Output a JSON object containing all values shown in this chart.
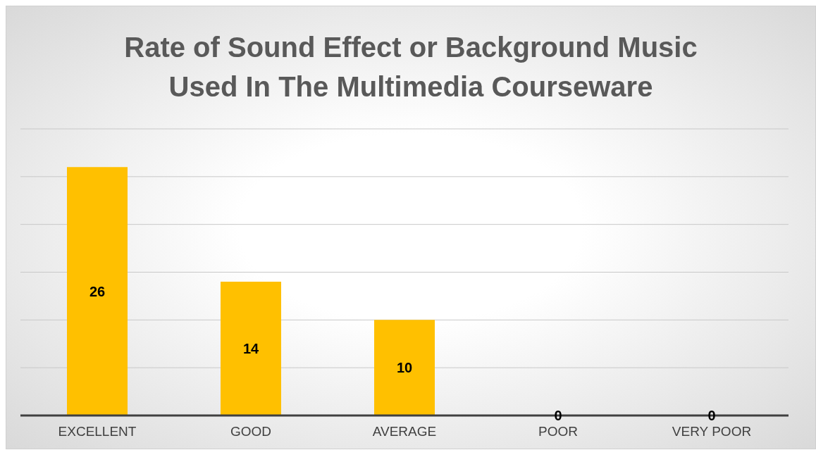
{
  "chart_data": {
    "type": "bar",
    "title": "Rate of Sound Effect or Background Music Used In The Multimedia Courseware",
    "categories": [
      "EXCELLENT",
      "GOOD",
      "AVERAGE",
      "POOR",
      "VERY POOR"
    ],
    "values": [
      26,
      14,
      10,
      0,
      0
    ],
    "color": "#ffc000",
    "ylim": [
      0,
      30
    ],
    "yticks": [
      {
        "value": 0,
        "label": null
      },
      {
        "value": 5,
        "label": null
      },
      {
        "value": 10,
        "label": null
      },
      {
        "value": 15,
        "label": null
      },
      {
        "value": 20,
        "label": null
      },
      {
        "value": 25,
        "label": null
      },
      {
        "value": 30,
        "label": null
      }
    ],
    "grid": "y",
    "data_labels": true,
    "tick_labels": "x"
  }
}
